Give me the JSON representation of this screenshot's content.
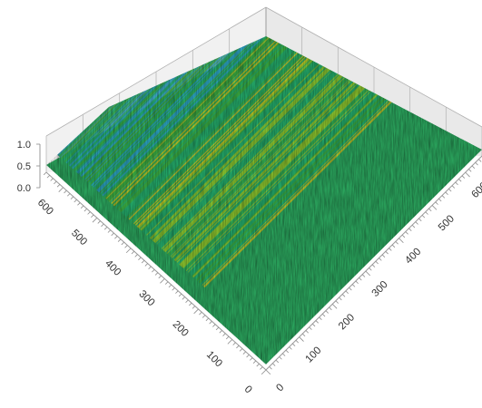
{
  "chart_data": {
    "type": "surface",
    "title": "",
    "xlabel": "",
    "ylabel": "",
    "zlabel": "",
    "x_axis": {
      "ticks": [
        "0",
        "100",
        "200",
        "300",
        "400",
        "500",
        "600"
      ],
      "range": [
        0,
        650
      ]
    },
    "y_axis": {
      "ticks": [
        "0",
        "100",
        "200",
        "300",
        "400",
        "500",
        "600"
      ],
      "range": [
        0,
        650
      ]
    },
    "z_axis": {
      "ticks": [
        "0.0",
        "0.5",
        "1.0"
      ],
      "range": [
        0,
        1.0
      ]
    },
    "colormap": [
      "#1f6fb0",
      "#2a9fbf",
      "#23a86a",
      "#3aa83f",
      "#8cbf2a",
      "#c8c020"
    ],
    "surface_description_values": {
      "dominant_height": 0.55,
      "stripe_direction": "diagonal",
      "low_band_height": 0.15,
      "high_band_height": 0.9
    },
    "grid": true,
    "legend": "none"
  }
}
